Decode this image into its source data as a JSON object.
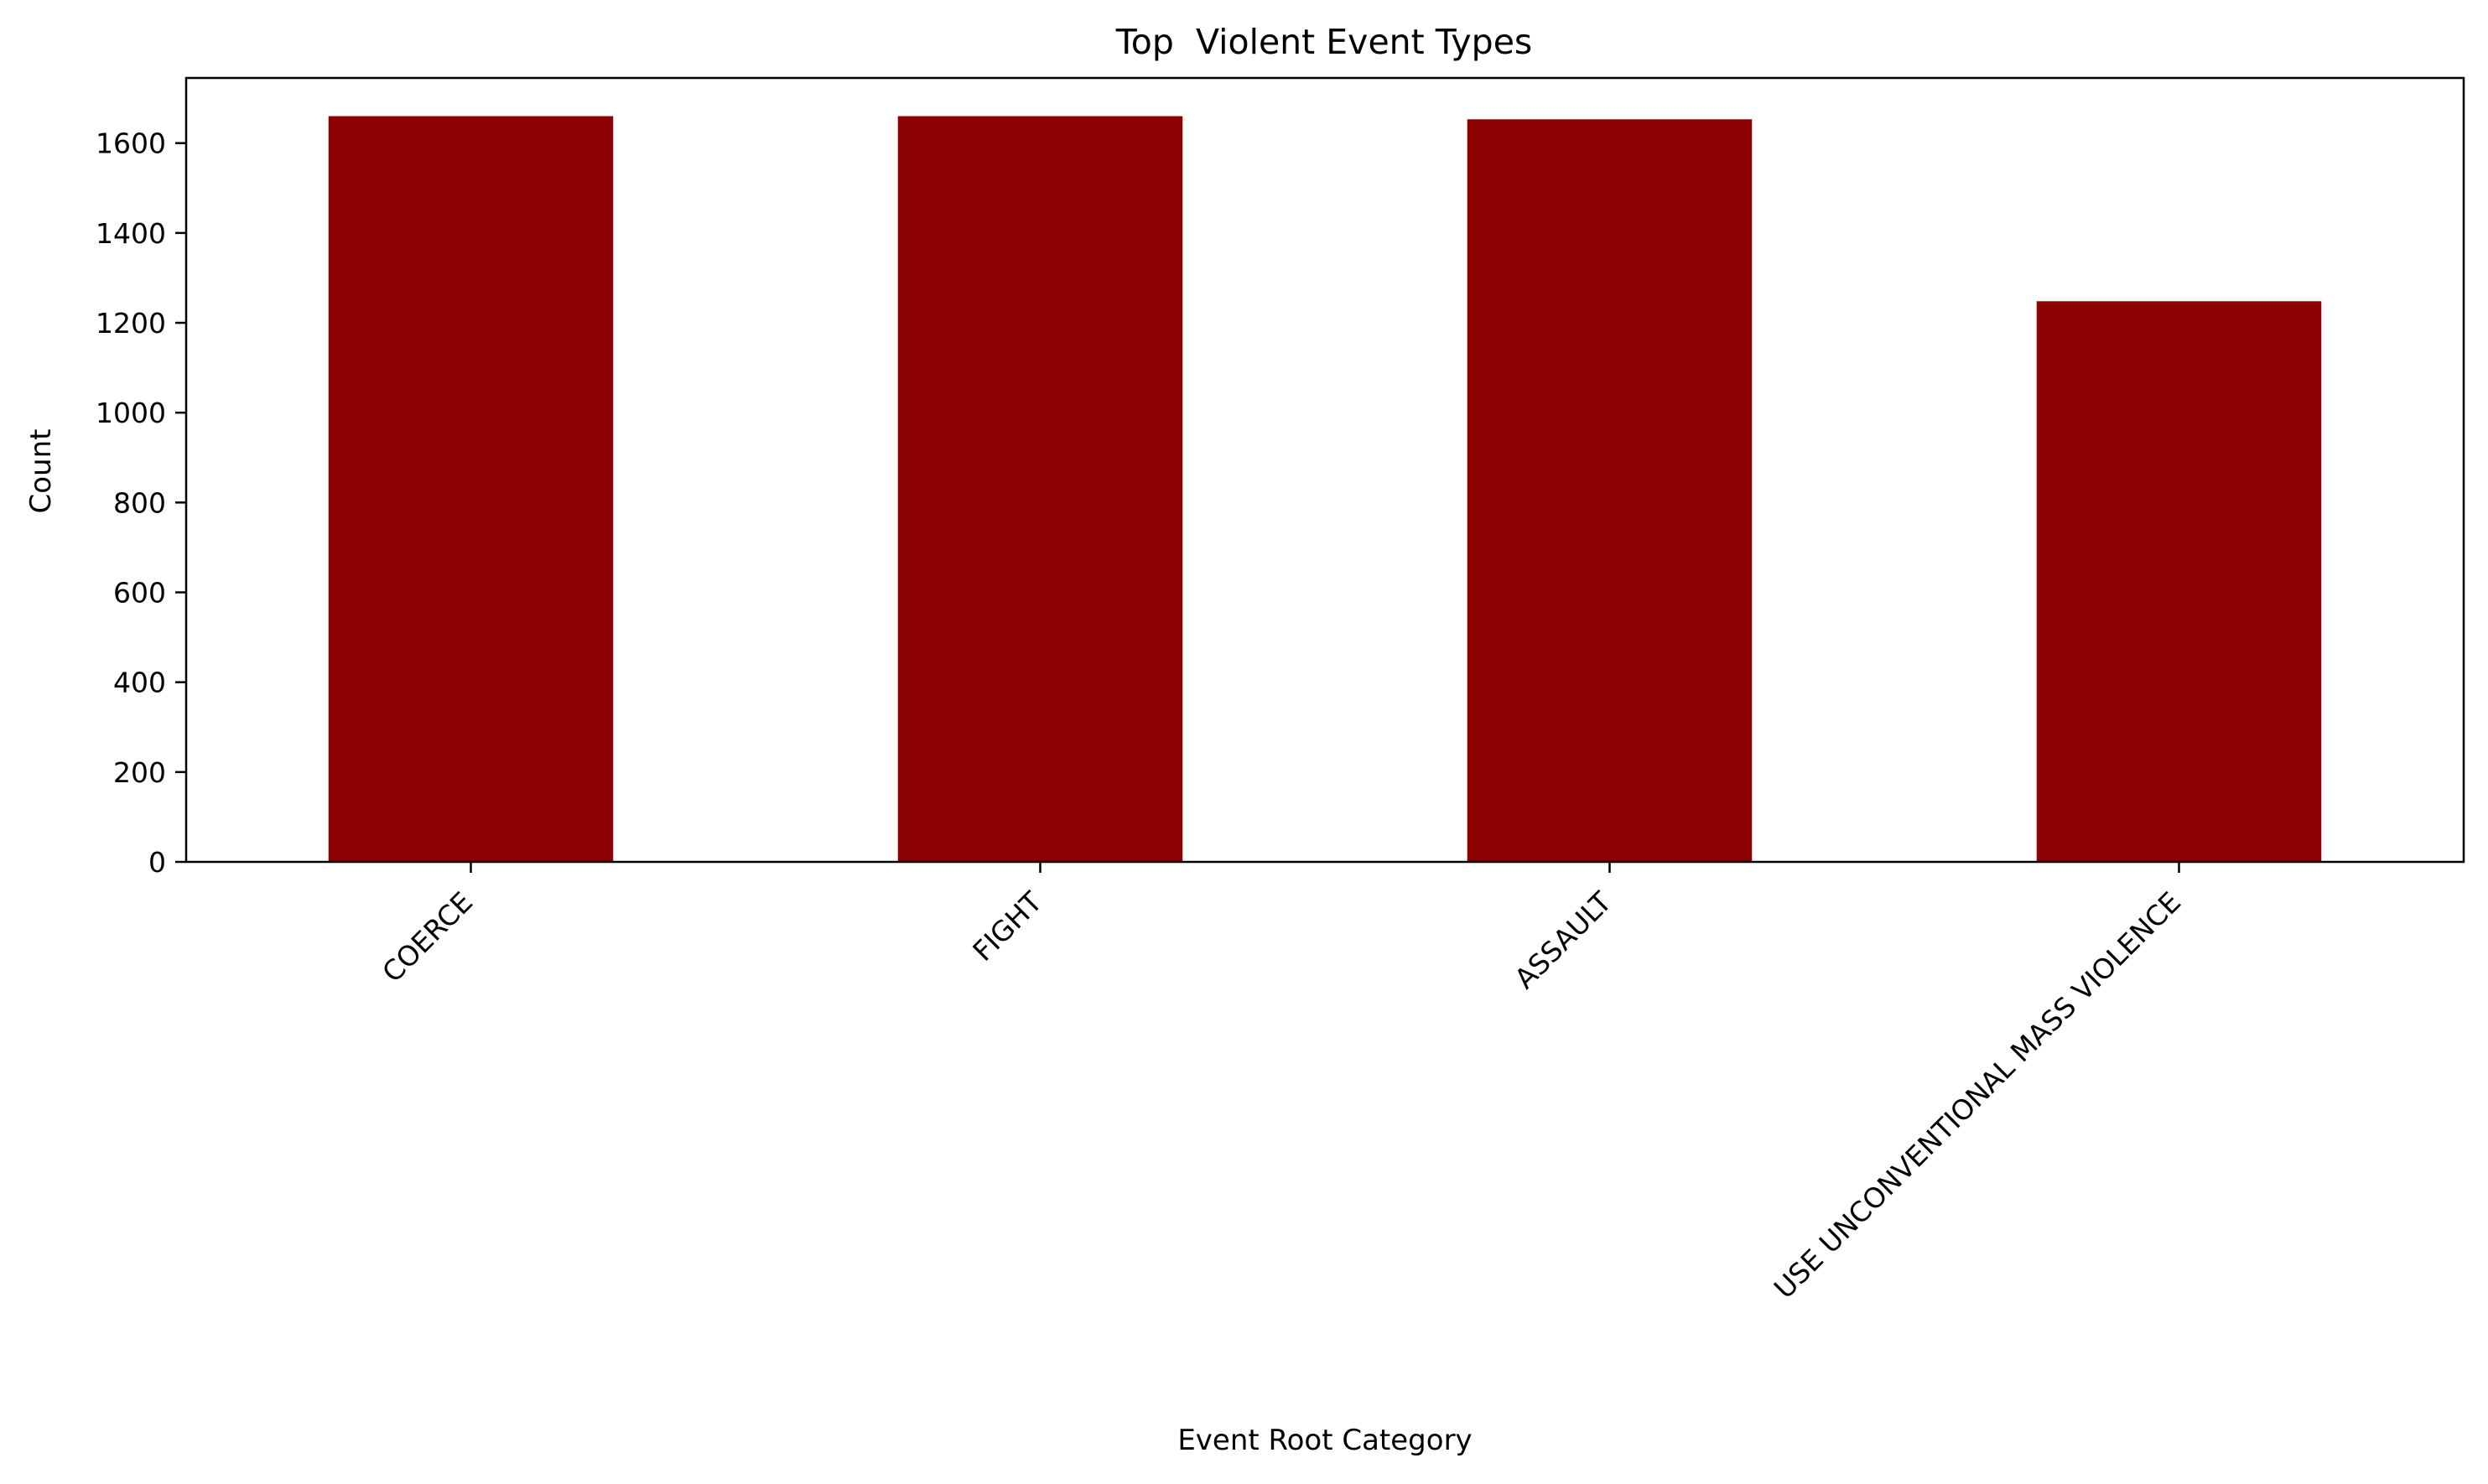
{
  "chart_data": {
    "type": "bar",
    "title": "Top  Violent Event Types",
    "xlabel": "Event Root Category",
    "ylabel": "Count",
    "categories": [
      "COERCE",
      "FIGHT",
      "ASSAULT",
      "USE UNCONVENTIONAL MASS VIOLENCE"
    ],
    "values": [
      1660,
      1660,
      1653,
      1248
    ],
    "ylim": [
      0,
      1745
    ],
    "yticks": [
      0,
      200,
      400,
      600,
      800,
      1000,
      1200,
      1400,
      1600
    ],
    "grid": false,
    "bar_color": "#8b0000"
  }
}
